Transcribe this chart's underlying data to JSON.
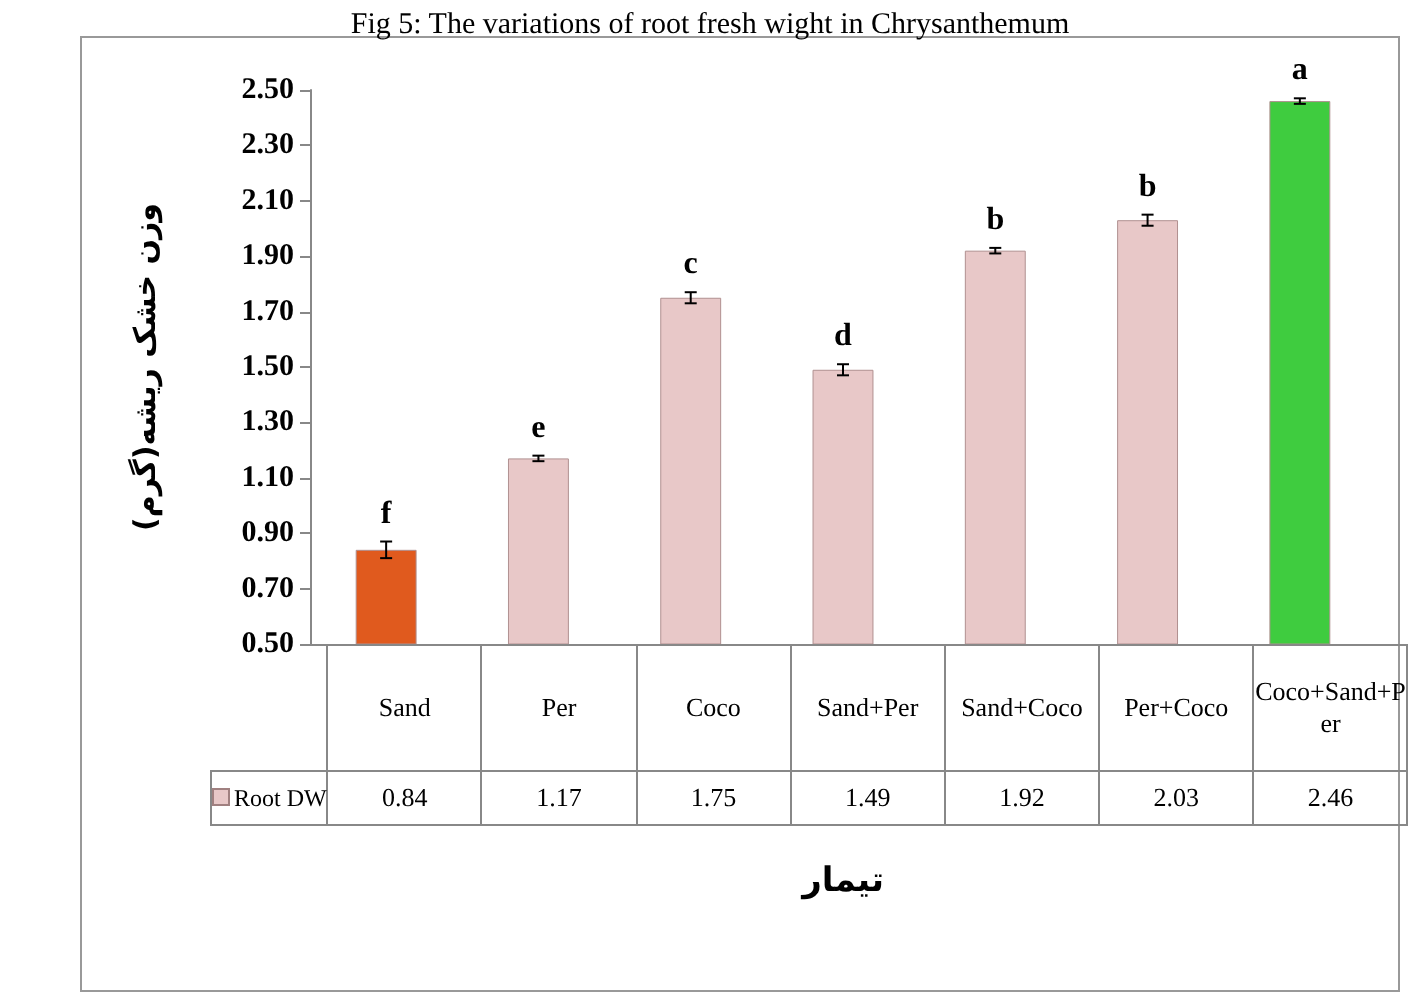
{
  "chart_data": {
    "type": "bar",
    "title": "Fig 5: The variations of root fresh wight in Chrysanthemum",
    "xlabel": "تیمار",
    "ylabel": "وزن خشک ریشه(گرم)",
    "categories": [
      "Sand",
      "Per",
      "Coco",
      "Sand+Per",
      "Sand+Coco",
      "Per+Coco",
      "Coco+Sand+Per"
    ],
    "series": [
      {
        "name": "Root DW",
        "color": "#e8c8c8",
        "colors": [
          "#e05a1e",
          "#e8c8c8",
          "#e8c8c8",
          "#e8c8c8",
          "#e8c8c8",
          "#e8c8c8",
          "#3fcc3f"
        ],
        "values": [
          0.84,
          1.17,
          1.75,
          1.49,
          1.92,
          2.03,
          2.46
        ],
        "errors": [
          0.03,
          0.01,
          0.02,
          0.02,
          0.01,
          0.02,
          0.01
        ]
      }
    ],
    "ylim": [
      0.5,
      2.5
    ],
    "yticks": [
      {
        "value": 0.5,
        "label": "0.50"
      },
      {
        "value": 0.7,
        "label": "0.70"
      },
      {
        "value": 0.9,
        "label": "0.90"
      },
      {
        "value": 1.1,
        "label": "1.10"
      },
      {
        "value": 1.3,
        "label": "1.30"
      },
      {
        "value": 1.5,
        "label": "1.50"
      },
      {
        "value": 1.7,
        "label": "1.70"
      },
      {
        "value": 1.9,
        "label": "1.90"
      },
      {
        "value": 2.1,
        "label": "2.10"
      },
      {
        "value": 2.3,
        "label": "2.30"
      },
      {
        "value": 2.5,
        "label": "2.50"
      }
    ],
    "grid": false,
    "legend": "bottom left",
    "data_labels": true,
    "annotations": [
      {
        "text": "f",
        "x": "Sand",
        "y": 0.87
      },
      {
        "text": "e",
        "x": "Per",
        "y": 1.18
      },
      {
        "text": "c",
        "x": "Coco",
        "y": 1.77
      },
      {
        "text": "d",
        "x": "Sand+Per",
        "y": 1.51
      },
      {
        "text": "b",
        "x": "Sand+Coco",
        "y": 1.93
      },
      {
        "text": "b",
        "x": "Per+Coco",
        "y": 2.05
      },
      {
        "text": "a",
        "x": "Coco+Sand+Per",
        "y": 2.47
      }
    ]
  }
}
